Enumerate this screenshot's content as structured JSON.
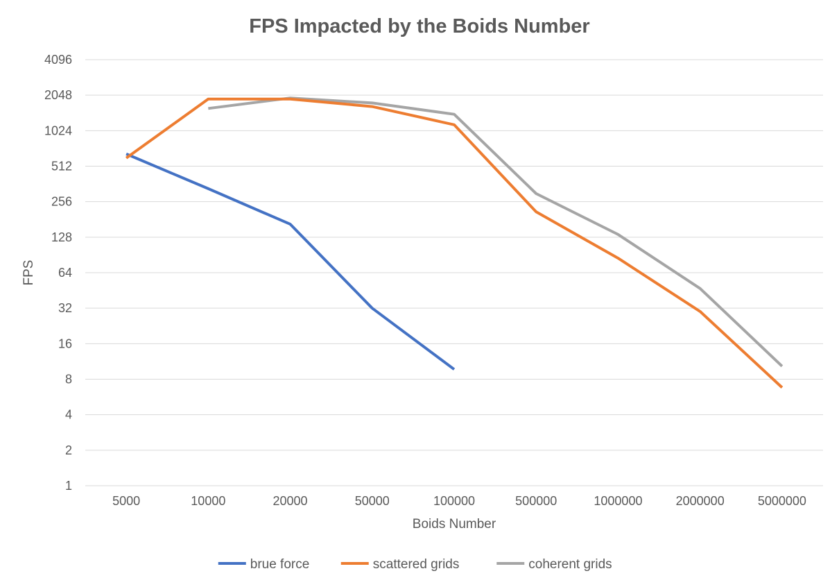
{
  "chart_data": {
    "type": "line",
    "title": "FPS Impacted by the Boids Number",
    "xlabel": "Boids Number",
    "ylabel": "FPS",
    "y_scale": "log2",
    "ylim": [
      1,
      4096
    ],
    "y_ticks": [
      1,
      2,
      4,
      8,
      16,
      32,
      64,
      128,
      256,
      512,
      1024,
      2048,
      4096
    ],
    "categories": [
      "5000",
      "10000",
      "20000",
      "50000",
      "100000",
      "500000",
      "1000000",
      "2000000",
      "5000000"
    ],
    "grid": true,
    "legend_position": "bottom",
    "series": [
      {
        "name": "brue force",
        "color": "#4472C4",
        "values": [
          650,
          330,
          165,
          32,
          9.7,
          null,
          null,
          null,
          null
        ]
      },
      {
        "name": "scattered grids",
        "color": "#ED7D31",
        "values": [
          600,
          1900,
          1900,
          1640,
          1150,
          210,
          85,
          30,
          6.8
        ]
      },
      {
        "name": "coherent grids",
        "color": "#A5A5A5",
        "values": [
          null,
          1580,
          1940,
          1760,
          1410,
          300,
          135,
          47,
          10.3
        ]
      }
    ]
  }
}
